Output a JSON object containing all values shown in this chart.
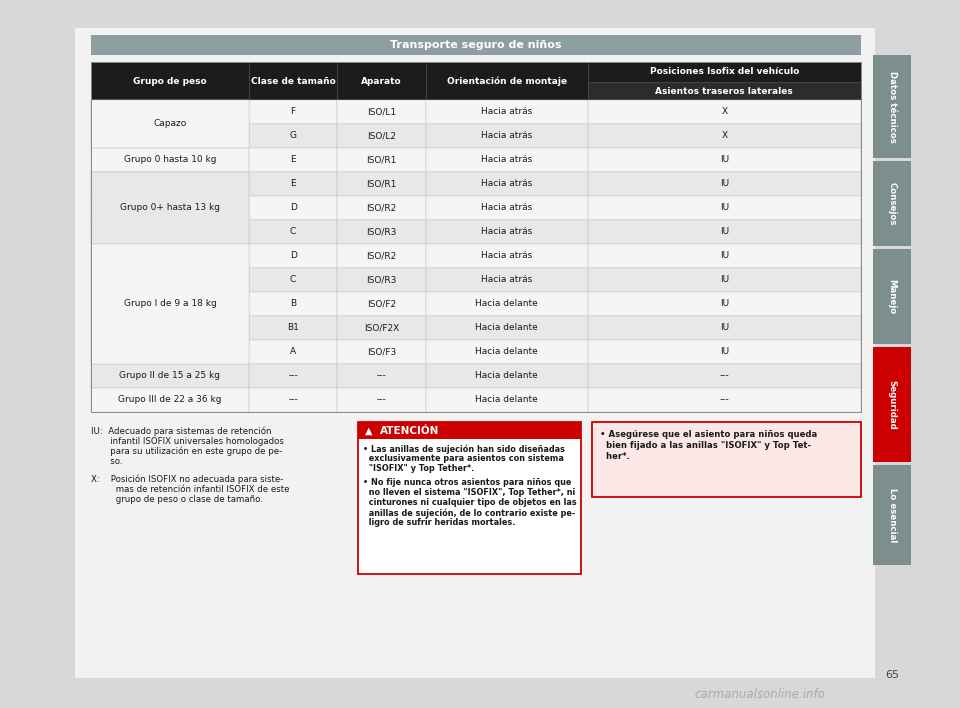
{
  "title": "Transporte seguro de niños",
  "title_bg": "#8c9ea0",
  "title_color": "#ffffff",
  "header_bg": "#1c1c1c",
  "header_color": "#ffffff",
  "subheader_bg": "#2c2c2c",
  "subheader_color": "#ffffff",
  "col_headers": [
    "Grupo de peso",
    "Clase de tamaño",
    "Aparato",
    "Orientación de montaje",
    "Posiciones Isofix del vehículo"
  ],
  "col_subheader4": "Asientos traseros laterales",
  "rows": [
    [
      "Capazo",
      "F",
      "ISO/L1",
      "Hacia atrás",
      "X"
    ],
    [
      "Capazo",
      "G",
      "ISO/L2",
      "Hacia atrás",
      "X"
    ],
    [
      "Grupo 0 hasta 10 kg",
      "E",
      "ISO/R1",
      "Hacia atrás",
      "IU"
    ],
    [
      "Grupo 0+ hasta 13 kg",
      "E",
      "ISO/R1",
      "Hacia atrás",
      "IU"
    ],
    [
      "Grupo 0+ hasta 13 kg",
      "D",
      "ISO/R2",
      "Hacia atrás",
      "IU"
    ],
    [
      "Grupo 0+ hasta 13 kg",
      "C",
      "ISO/R3",
      "Hacia atrás",
      "IU"
    ],
    [
      "Grupo I de 9 a 18 kg",
      "D",
      "ISO/R2",
      "Hacia atrás",
      "IU"
    ],
    [
      "Grupo I de 9 a 18 kg",
      "C",
      "ISO/R3",
      "Hacia atrás",
      "IU"
    ],
    [
      "Grupo I de 9 a 18 kg",
      "B",
      "ISO/F2",
      "Hacia delante",
      "IU"
    ],
    [
      "Grupo I de 9 a 18 kg",
      "B1",
      "ISO/F2X",
      "Hacia delante",
      "IU"
    ],
    [
      "Grupo I de 9 a 18 kg",
      "A",
      "ISO/F3",
      "Hacia delante",
      "IU"
    ],
    [
      "Grupo II de 15 a 25 kg",
      "---",
      "---",
      "Hacia delante",
      "---"
    ],
    [
      "Grupo III de 22 a 36 kg",
      "---",
      "---",
      "Hacia delante",
      "---"
    ]
  ],
  "merged_groups": {
    "Capazo": [
      0,
      1
    ],
    "Grupo 0+ hasta 13 kg": [
      3,
      4,
      5
    ],
    "Grupo I de 9 a 18 kg": [
      6,
      7,
      8,
      9,
      10
    ]
  },
  "sidebar_items": [
    {
      "label": "Datos técnicos",
      "color": "#7d8e8e"
    },
    {
      "label": "Consejos",
      "color": "#7d8e8e"
    },
    {
      "label": "Manejo",
      "color": "#7d8e8e"
    },
    {
      "label": "Seguridad",
      "color": "#cc0000"
    },
    {
      "label": "Lo esencial",
      "color": "#7d8e8e"
    }
  ],
  "footer_text": "65",
  "iu_lines": [
    "IU:  Adecuado para sistemas de retención",
    "       infantil ISOFIX universales homologados",
    "       para su utilización en este grupo de pe-",
    "       so."
  ],
  "x_lines": [
    "X:    Posición ISOFIX no adecuada para siste-",
    "         mas de retención infantil ISOFIX de este",
    "         grupo de peso o clase de tamaño."
  ],
  "attencion_title": "ATENCIÓN",
  "attencion_t1_lines": [
    "• Las anillas de sujeción han sido diseñadas",
    "  exclusivamente para asientos con sistema",
    "  \"ISOFIX\" y Top Tether*."
  ],
  "attencion_t2_lines": [
    "• No fije nunca otros asientos para niños que",
    "  no lleven el sistema \"ISOFIX\", Top Tether*, ni",
    "  cinturones ni cualquier tipo de objetos en las",
    "  anillas de sujeción, de lo contrario existe pe-",
    "  ligro de sufrir heridas mortales."
  ],
  "warning_lines": [
    "• Asegúrese que el asiento para niños queda",
    "  bien fijado a las anillas \"ISOFIX\" y Top Tet-",
    "  her*."
  ],
  "watermark": "carmanualsonline.info",
  "page_bg": "#d8d8d8",
  "content_bg": "#f2f2f2"
}
